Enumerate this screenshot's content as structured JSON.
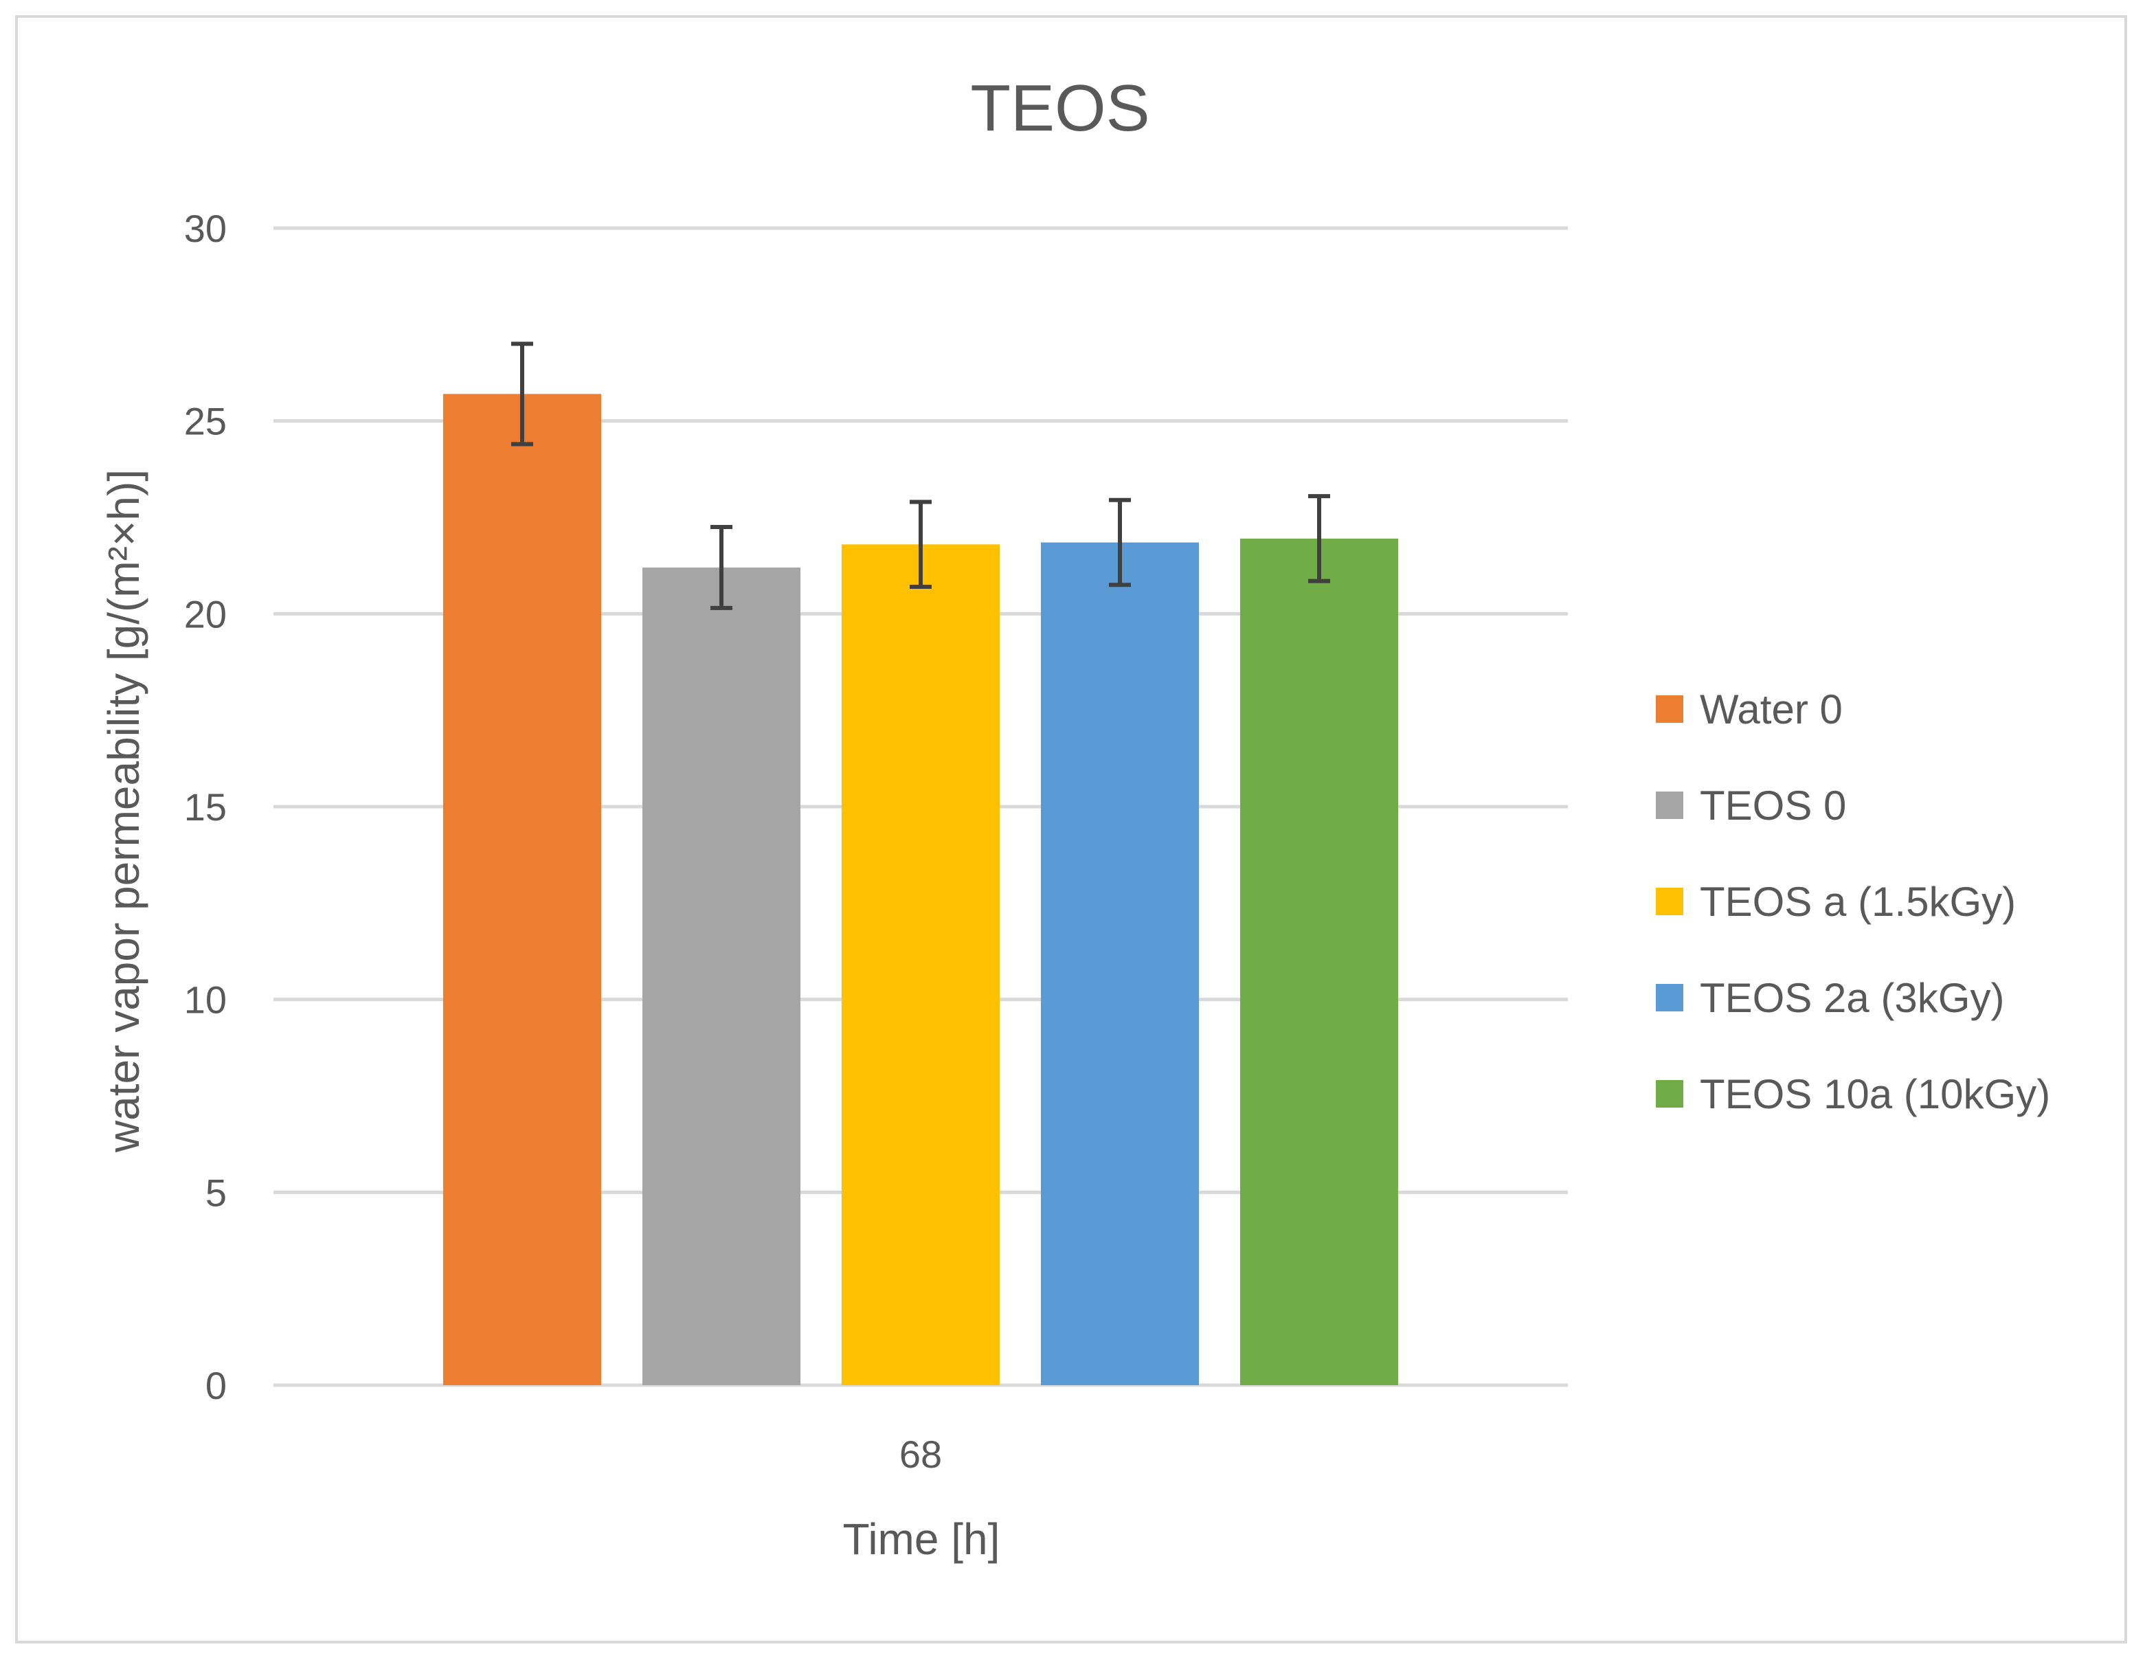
{
  "chart_data": {
    "type": "bar",
    "title": "TEOS",
    "xlabel": "Time [h]",
    "ylabel": "water vapor permeability [g/(m²×h)]",
    "categories": [
      "68"
    ],
    "ylim": [
      0,
      30
    ],
    "yticks": [
      0,
      5,
      10,
      15,
      20,
      25,
      30
    ],
    "grid": true,
    "legend_position": "right",
    "series": [
      {
        "name": "Water 0",
        "values": [
          25.7
        ],
        "error": [
          1.3
        ],
        "color": "#ED7D31"
      },
      {
        "name": "TEOS 0",
        "values": [
          21.2
        ],
        "error": [
          1.05
        ],
        "color": "#A5A5A5"
      },
      {
        "name": "TEOS a (1.5kGy)",
        "values": [
          21.8
        ],
        "error": [
          1.1
        ],
        "color": "#FFC000"
      },
      {
        "name": "TEOS 2a (3kGy)",
        "values": [
          21.85
        ],
        "error": [
          1.1
        ],
        "color": "#5B9BD5"
      },
      {
        "name": "TEOS 10a (10kGy)",
        "values": [
          21.95
        ],
        "error": [
          1.1
        ],
        "color": "#70AD47"
      }
    ]
  }
}
